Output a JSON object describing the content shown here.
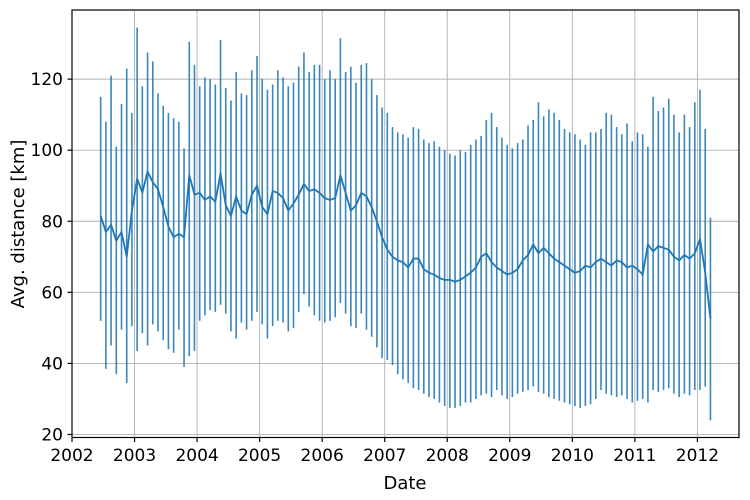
{
  "chart_data": {
    "type": "line",
    "subtype": "errorbar-line",
    "title": "",
    "xlabel": "Date",
    "ylabel": "Avg. distance [km]",
    "legend": null,
    "grid": true,
    "colors": {
      "series": "#1f77b4",
      "grid": "#b0b0b0",
      "spine": "#000000",
      "background": "#ffffff"
    },
    "x_ticks": [
      2002,
      2003,
      2004,
      2005,
      2006,
      2007,
      2008,
      2009,
      2010,
      2011,
      2012
    ],
    "y_ticks": [
      20,
      40,
      60,
      80,
      100,
      120
    ],
    "xlim": [
      2002.0,
      2012.665
    ],
    "ylim": [
      19.15,
      139.45
    ],
    "series_start": {
      "year": 2002,
      "month": 6
    },
    "avg": [
      81.5,
      77,
      79,
      74.5,
      77,
      70,
      83,
      92,
      88,
      94,
      91,
      89,
      84,
      78.5,
      75.5,
      76.5,
      75.5,
      93,
      87.5,
      88,
      86,
      87,
      85.5,
      93.5,
      84.5,
      81.5,
      87,
      83,
      82,
      87.5,
      90,
      84,
      82,
      88.5,
      88,
      86.5,
      83,
      85,
      87.5,
      90.5,
      88.5,
      89,
      88,
      86.5,
      86,
      86.5,
      93,
      88,
      83,
      84.5,
      88,
      87,
      84,
      80,
      75.5,
      72,
      70,
      69,
      68.5,
      67,
      69.5,
      69.5,
      66.5,
      65.5,
      65,
      64,
      63.5,
      63.5,
      63,
      63.5,
      64.5,
      65.5,
      67,
      70,
      71,
      68.5,
      67,
      66,
      65,
      65.5,
      66.5,
      69,
      70.5,
      73.5,
      71,
      72.5,
      71,
      69.5,
      68.5,
      67.5,
      66.5,
      65.5,
      66,
      67.5,
      67,
      68.5,
      69.5,
      68.5,
      67.5,
      69,
      68.5,
      67,
      67.5,
      66.5,
      65,
      73.5,
      71.5,
      73,
      72.5,
      72,
      70,
      69,
      70.5,
      69.5,
      71,
      75,
      65.5,
      52.5
    ],
    "max": [
      115,
      108,
      121,
      101,
      113,
      123,
      110.5,
      134.5,
      118,
      127.5,
      125,
      116,
      112.5,
      110.5,
      109,
      108,
      100.5,
      130.5,
      124,
      118,
      120.5,
      120,
      118.5,
      131,
      117.5,
      114,
      122,
      116,
      115.5,
      122.5,
      126.5,
      120,
      117,
      118.5,
      122.5,
      120.5,
      118,
      119,
      123.5,
      127.5,
      122,
      124,
      124,
      120,
      122.5,
      120,
      131.5,
      122,
      123.5,
      119,
      124,
      124.5,
      120,
      115.5,
      112,
      110.5,
      106.5,
      105,
      104.5,
      103.5,
      106.5,
      106,
      103,
      102,
      102.5,
      101,
      100,
      99,
      98.5,
      100,
      99.5,
      101.5,
      103,
      104,
      108.5,
      110.5,
      106.5,
      103.5,
      101.5,
      100.5,
      102,
      103,
      107,
      108.5,
      113.5,
      109.5,
      111.5,
      110.5,
      108.5,
      106,
      105,
      104.5,
      103,
      101.5,
      105,
      105,
      106,
      110.5,
      110,
      106.5,
      104.5,
      107.5,
      102.5,
      105,
      104.5,
      101,
      115,
      111,
      112,
      114.5,
      110,
      105,
      110,
      106.5,
      113.5,
      117,
      106,
      81
    ],
    "min": [
      52,
      38.5,
      45,
      37,
      49.5,
      34.5,
      50.5,
      43.5,
      48.5,
      45,
      51,
      49,
      46.5,
      44,
      43,
      49.5,
      39,
      42,
      43.5,
      52,
      53.5,
      55,
      54.5,
      56.5,
      54,
      49,
      47,
      51.5,
      49.5,
      52,
      54.5,
      51,
      47,
      50.5,
      52,
      51.5,
      49,
      50,
      54.5,
      59.5,
      56,
      53.5,
      52,
      51.5,
      52,
      53,
      57,
      54,
      50.5,
      50,
      54,
      49.5,
      47.5,
      44.5,
      41.5,
      41,
      39.5,
      37,
      35.5,
      34.5,
      33,
      32.5,
      31.5,
      30.5,
      30,
      29,
      28,
      27.5,
      27.5,
      28,
      29,
      29,
      30,
      31,
      31.5,
      30.5,
      32.5,
      31,
      30,
      30.5,
      31.5,
      32,
      32.5,
      33.5,
      32,
      31.5,
      30.5,
      30,
      29.5,
      29,
      28.5,
      28,
      27.5,
      28,
      28.5,
      30,
      32.5,
      31.5,
      31,
      30.5,
      31,
      30,
      29,
      29.5,
      30,
      29,
      32.5,
      32,
      32.5,
      33,
      31.5,
      30.5,
      31.5,
      31,
      32.5,
      32.5,
      33.5,
      24
    ]
  }
}
